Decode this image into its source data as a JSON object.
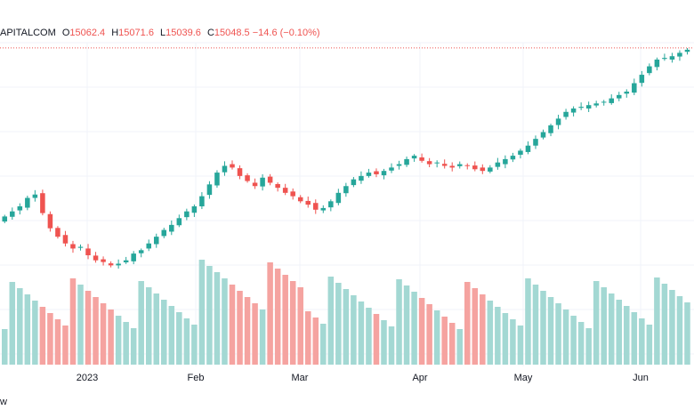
{
  "legend": {
    "symbol": "APITALCOM",
    "o_label": "O",
    "o_value": "15062.4",
    "h_label": "H",
    "h_value": "15071.6",
    "l_label": "L",
    "l_value": "15039.6",
    "c_label": "C",
    "c_value": "15048.5",
    "change": "−14.6 (−0.10%)"
  },
  "footer_text": "w",
  "colors": {
    "up": "#26a69a",
    "down": "#ef5350",
    "vol_up": "#a3d8d3",
    "vol_down": "#f5a3a0",
    "grid": "#f0f3fa",
    "price_line": "#ef5350"
  },
  "chart_data": {
    "type": "candlestick",
    "x_tick_labels": [
      "2023",
      "Feb",
      "Mar",
      "Apr",
      "May",
      "Jun"
    ],
    "last_price_line": 15048.5,
    "close_series": [
      14060,
      14090,
      14120,
      14170,
      14190,
      14080,
      13990,
      13940,
      13900,
      13870,
      13880,
      13830,
      13800,
      13790,
      13770,
      13780,
      13800,
      13840,
      13860,
      13900,
      13940,
      13980,
      14010,
      14050,
      14090,
      14120,
      14180,
      14250,
      14320,
      14360,
      14350,
      14300,
      14270,
      14240,
      14290,
      14260,
      14230,
      14200,
      14180,
      14150,
      14130,
      14100,
      14110,
      14150,
      14200,
      14240,
      14280,
      14300,
      14320,
      14310,
      14330,
      14350,
      14370,
      14400,
      14420,
      14390,
      14370,
      14380,
      14360,
      14350,
      14370,
      14360,
      14340,
      14330,
      14350,
      14380,
      14400,
      14420,
      14450,
      14480,
      14520,
      14560,
      14600,
      14640,
      14680,
      14700,
      14710,
      14720,
      14730,
      14740,
      14760,
      14780,
      14800,
      14850,
      14900,
      14950,
      14990,
      15000,
      15010,
      15030,
      15048.5
    ]
  }
}
